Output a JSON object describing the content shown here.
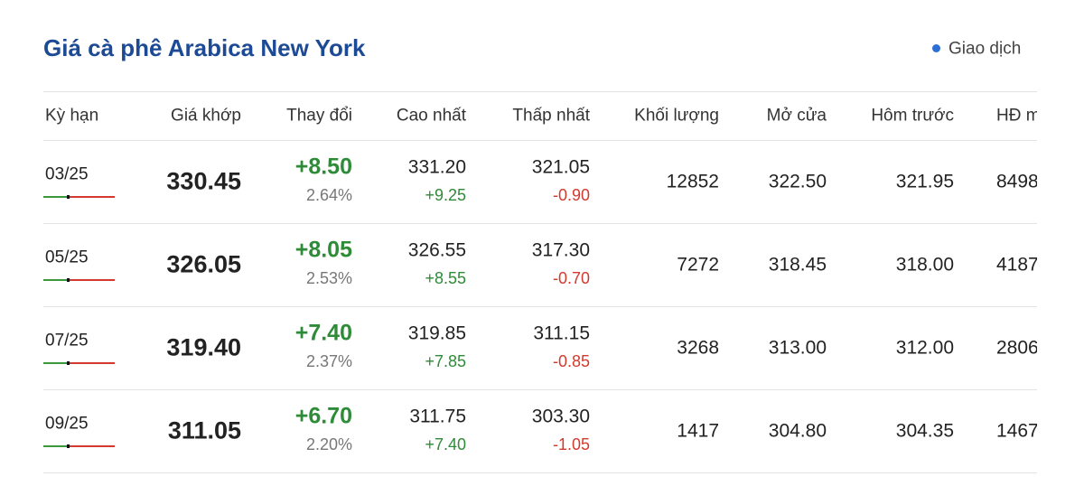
{
  "header": {
    "title": "Giá cà phê Arabica New York",
    "status": "Giao dịch"
  },
  "table": {
    "headers": [
      "Kỳ hạn",
      "Giá khớp",
      "Thay đổi",
      "Cao nhất",
      "Thấp nhất",
      "Khối lượng",
      "Mở cửa",
      "Hôm trước",
      "HĐ m"
    ],
    "rows": [
      {
        "term": "03/25",
        "price": "330.45",
        "change": "+8.50",
        "change_pct": "2.64%",
        "high": "331.20",
        "high_change": "+9.25",
        "low": "321.05",
        "low_change": "-0.90",
        "volume": "12852",
        "open": "322.50",
        "previous": "321.95",
        "open_interest": "8498"
      },
      {
        "term": "05/25",
        "price": "326.05",
        "change": "+8.05",
        "change_pct": "2.53%",
        "high": "326.55",
        "high_change": "+8.55",
        "low": "317.30",
        "low_change": "-0.70",
        "volume": "7272",
        "open": "318.45",
        "previous": "318.00",
        "open_interest": "4187"
      },
      {
        "term": "07/25",
        "price": "319.40",
        "change": "+7.40",
        "change_pct": "2.37%",
        "high": "319.85",
        "high_change": "+7.85",
        "low": "311.15",
        "low_change": "-0.85",
        "volume": "3268",
        "open": "313.00",
        "previous": "312.00",
        "open_interest": "2806"
      },
      {
        "term": "09/25",
        "price": "311.05",
        "change": "+6.70",
        "change_pct": "2.20%",
        "high": "311.75",
        "high_change": "+7.40",
        "low": "303.30",
        "low_change": "-1.05",
        "volume": "1417",
        "open": "304.80",
        "previous": "304.35",
        "open_interest": "1467"
      }
    ]
  }
}
